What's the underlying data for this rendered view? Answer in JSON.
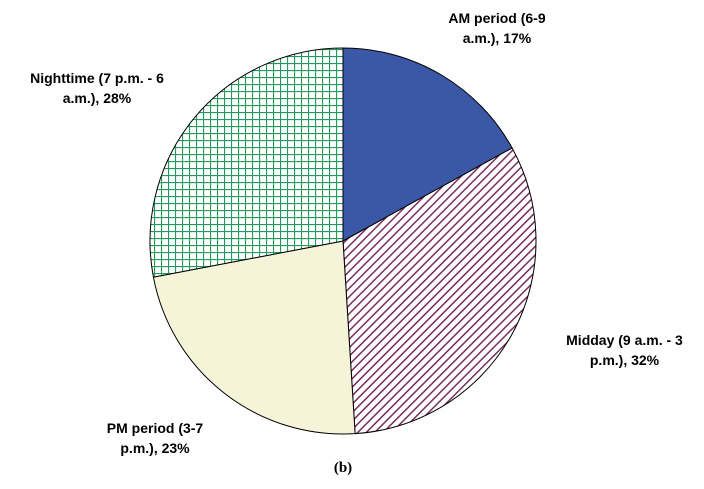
{
  "chart_data": {
    "type": "pie",
    "categories": [
      "AM period (6-9 a.m.), 17%",
      "Midday (9 a.m. - 3 p.m.), 32%",
      "PM period (3-7 p.m.), 23%",
      "Nighttime (7 p.m. - 6 a.m.), 28%"
    ],
    "values": [
      17,
      32,
      23,
      28
    ],
    "colors": [
      "#3a58a6",
      "#7a2c5c",
      "#f6f4d8",
      "#1f9a5c"
    ],
    "fills": [
      "solid",
      "diagonal",
      "solid",
      "grid"
    ],
    "caption": "(b)"
  }
}
